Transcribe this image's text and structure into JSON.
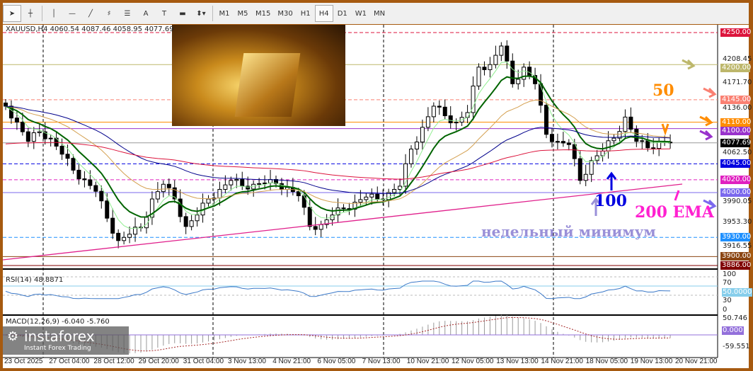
{
  "toolbar": {
    "tools": [
      "cursor-icon",
      "crosshair-icon",
      "vertical-line-icon",
      "horizontal-line-icon",
      "trendline-icon",
      "fibonacci-icon",
      "fibo-fan-icon",
      "text-icon",
      "text-label-icon",
      "rectangle-icon",
      "more-shapes-icon"
    ],
    "text_tool": "A",
    "timeframes": [
      "M1",
      "M5",
      "M15",
      "M30",
      "H1",
      "H4",
      "D1",
      "W1",
      "MN"
    ],
    "active_timeframe": "H4"
  },
  "symbol_info": "XAUUSD,H4  4060.54 4087.46 4058.95 4077.69",
  "price_axis": [
    "4208.45",
    "4171.70",
    "4136.00",
    "4062.50",
    "3990.05",
    "3953.30",
    "3916.55"
  ],
  "levels": [
    {
      "price": 4250,
      "label": "4250.00",
      "color": "#dc143c",
      "dash": true
    },
    {
      "price": 4200,
      "label": "4200.00",
      "color": "#bdb76b",
      "dash": false
    },
    {
      "price": 4145,
      "label": "4145.00",
      "color": "#fa8072",
      "dash": true
    },
    {
      "price": 4110,
      "label": "4110.00",
      "color": "#ff8c00",
      "dash": false
    },
    {
      "price": 4100,
      "label": "4100.00",
      "color": "#9932cc",
      "dash": false
    },
    {
      "price": 4077.69,
      "label": "4077.69",
      "color": "#000000",
      "dash": false
    },
    {
      "price": 4045,
      "label": "4045.00",
      "color": "#0000e0",
      "dash": true
    },
    {
      "price": 4020,
      "label": "4020.00",
      "color": "#e020c0",
      "dash": true
    },
    {
      "price": 4000,
      "label": "4000.00",
      "color": "#7b68ee",
      "dash": false
    },
    {
      "price": 3930,
      "label": "3930.00",
      "color": "#1e90ff",
      "dash": true
    },
    {
      "price": 3900,
      "label": "3900.00",
      "color": "#8b4513",
      "dash": false
    },
    {
      "price": 3886,
      "label": "3886.00",
      "color": "#800000",
      "dash": false
    }
  ],
  "chart_data": {
    "type": "candlestick",
    "closes": [
      4135,
      4110,
      4080,
      4095,
      4085,
      4060,
      4035,
      4020,
      4002,
      3960,
      3925,
      3935,
      3945,
      3990,
      4013,
      3990,
      3947,
      3965,
      3990,
      4005,
      4019,
      4010,
      4013,
      4015,
      4014,
      4008,
      3995,
      3947,
      3950,
      3965,
      3975,
      3985,
      3993,
      3990,
      4000,
      4010,
      4068,
      4102,
      4135,
      4120,
      4110,
      4125,
      4196,
      4200,
      4229,
      4170,
      4196,
      4170,
      4091,
      4080,
      4075,
      4019,
      4050,
      4065,
      4085,
      4118,
      4080,
      4070,
      4080,
      4077.69
    ]
  },
  "rsi": {
    "label": "RSI(14) 48.8871",
    "axis": [
      "100",
      "70",
      "50.0000",
      "30",
      "0"
    ]
  },
  "macd": {
    "label": "MACD(12,26,9) -6.040 -5.760",
    "axis": [
      "50.746",
      "0.000",
      "-59.551"
    ]
  },
  "time_axis": [
    "23 Oct 2025",
    "27 Oct 04:00",
    "28 Oct 12:00",
    "29 Oct 20:00",
    "31 Oct 04:00",
    "3 Nov 13:00",
    "4 Nov 21:00",
    "6 Nov 05:00",
    "7 Nov 13:00",
    "10 Nov 21:00",
    "12 Nov 05:00",
    "13 Nov 13:00",
    "14 Nov 21:00",
    "18 Nov 05:00",
    "19 Nov 13:00",
    "20 Nov 21:00"
  ],
  "annotations": {
    "ema50": "50",
    "ema100": "100",
    "ema200": "200 EMA",
    "weekly_low": "недельный минимум"
  },
  "logo": {
    "name": "instaforex",
    "tagline": "Instant Forex Trading"
  },
  "watermark_image": "gold bars photo"
}
